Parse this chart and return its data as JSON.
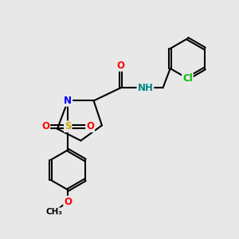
{
  "bg_color": "#e8e8e8",
  "bond_color": "#000000",
  "bond_width": 1.5,
  "atom_colors": {
    "N": "#0000ff",
    "O": "#ff0000",
    "S": "#ccaa00",
    "Cl": "#00bb00",
    "H": "#008888",
    "C": "#000000"
  },
  "font_size": 8.5,
  "dbo": 0.06
}
